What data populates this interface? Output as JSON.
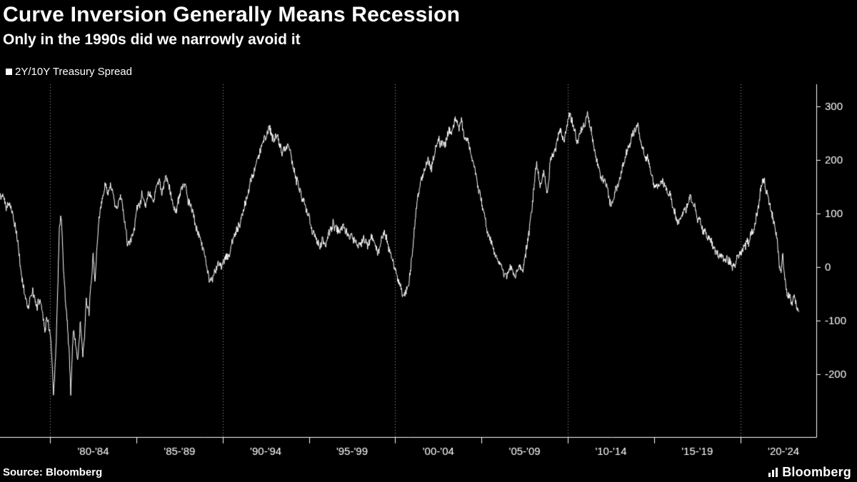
{
  "header": {
    "title": "Curve Inversion Generally Means Recession",
    "subtitle": "Only in the 1990s did we narrowly avoid it"
  },
  "legend": {
    "label": "2Y/10Y Treasury Spread"
  },
  "footer": {
    "source": "Source: Bloomberg",
    "brand": "Bloomberg"
  },
  "colors": {
    "background": "#000000",
    "line": "#ffffff",
    "grid": "rgba(255,255,255,0.65)",
    "axis": "#ffffff",
    "text": "#ffffff"
  },
  "chart_data": {
    "type": "line",
    "title": "Curve Inversion Generally Means Recession",
    "subtitle": "Only in the 1990s did we narrowly avoid it",
    "unit": "basis points",
    "legend_position": "top-left",
    "grid": "vertical-dotted",
    "x_range": [
      1977.1,
      2024.4
    ],
    "y_range": [
      -317,
      341
    ],
    "y_ticks": [
      300,
      200,
      100,
      0,
      -100,
      -200
    ],
    "x_grid_years": [
      1980,
      1990,
      2000,
      2010,
      2020
    ],
    "x_tick_years": [
      1980,
      1985,
      1990,
      1995,
      2000,
      2005,
      2010,
      2015,
      2020
    ],
    "x_labels": [
      {
        "label": "'80-'84",
        "center": 1982.5
      },
      {
        "label": "'85-'89",
        "center": 1987.5
      },
      {
        "label": "'90-'94",
        "center": 1992.5
      },
      {
        "label": "'95-'99",
        "center": 1997.5
      },
      {
        "label": "'00-'04",
        "center": 2002.5
      },
      {
        "label": "'05-'09",
        "center": 2007.5
      },
      {
        "label": "'10-'14",
        "center": 2012.5
      },
      {
        "label": "'15-'19",
        "center": 2017.5
      },
      {
        "label": "'20-'24",
        "center": 2022.5
      }
    ],
    "noise_amplitude": 6,
    "series": [
      {
        "name": "2Y/10Y Treasury Spread",
        "points": [
          [
            1977.0,
            155
          ],
          [
            1977.15,
            125
          ],
          [
            1977.3,
            138
          ],
          [
            1977.45,
            118
          ],
          [
            1977.6,
            125
          ],
          [
            1977.8,
            100
          ],
          [
            1978.0,
            72
          ],
          [
            1978.2,
            25
          ],
          [
            1978.35,
            -18
          ],
          [
            1978.5,
            -40
          ],
          [
            1978.7,
            -70
          ],
          [
            1978.85,
            -55
          ],
          [
            1979.0,
            -50
          ],
          [
            1979.2,
            -82
          ],
          [
            1979.35,
            -60
          ],
          [
            1979.5,
            -65
          ],
          [
            1979.7,
            -112
          ],
          [
            1979.85,
            -90
          ],
          [
            1980.0,
            -120
          ],
          [
            1980.1,
            -170
          ],
          [
            1980.2,
            -250
          ],
          [
            1980.35,
            -150
          ],
          [
            1980.45,
            -40
          ],
          [
            1980.55,
            80
          ],
          [
            1980.65,
            100
          ],
          [
            1980.8,
            -10
          ],
          [
            1980.95,
            -80
          ],
          [
            1981.1,
            -160
          ],
          [
            1981.2,
            -232
          ],
          [
            1981.35,
            -120
          ],
          [
            1981.5,
            -150
          ],
          [
            1981.6,
            -172
          ],
          [
            1981.75,
            -110
          ],
          [
            1981.9,
            -158
          ],
          [
            1982.0,
            -125
          ],
          [
            1982.1,
            -55
          ],
          [
            1982.25,
            -95
          ],
          [
            1982.4,
            -25
          ],
          [
            1982.5,
            22
          ],
          [
            1982.6,
            -35
          ],
          [
            1982.75,
            45
          ],
          [
            1982.9,
            105
          ],
          [
            1983.0,
            125
          ],
          [
            1983.2,
            152
          ],
          [
            1983.35,
            130
          ],
          [
            1983.5,
            148
          ],
          [
            1983.7,
            128
          ],
          [
            1983.9,
            115
          ],
          [
            1984.1,
            128
          ],
          [
            1984.3,
            85
          ],
          [
            1984.5,
            48
          ],
          [
            1984.7,
            58
          ],
          [
            1984.9,
            80
          ],
          [
            1985.1,
            115
          ],
          [
            1985.3,
            132
          ],
          [
            1985.5,
            118
          ],
          [
            1985.7,
            140
          ],
          [
            1985.9,
            125
          ],
          [
            1986.1,
            142
          ],
          [
            1986.3,
            158
          ],
          [
            1986.5,
            140
          ],
          [
            1986.7,
            160
          ],
          [
            1986.9,
            148
          ],
          [
            1987.1,
            118
          ],
          [
            1987.3,
            102
          ],
          [
            1987.5,
            132
          ],
          [
            1987.7,
            148
          ],
          [
            1987.9,
            138
          ],
          [
            1988.1,
            120
          ],
          [
            1988.3,
            95
          ],
          [
            1988.5,
            75
          ],
          [
            1988.7,
            55
          ],
          [
            1988.9,
            35
          ],
          [
            1989.1,
            5
          ],
          [
            1989.25,
            -22
          ],
          [
            1989.4,
            -28
          ],
          [
            1989.6,
            -8
          ],
          [
            1989.8,
            2
          ],
          [
            1990.0,
            12
          ],
          [
            1990.2,
            28
          ],
          [
            1990.4,
            22
          ],
          [
            1990.6,
            48
          ],
          [
            1990.8,
            62
          ],
          [
            1991.0,
            78
          ],
          [
            1991.2,
            108
          ],
          [
            1991.4,
            128
          ],
          [
            1991.6,
            158
          ],
          [
            1991.8,
            178
          ],
          [
            1992.0,
            205
          ],
          [
            1992.2,
            222
          ],
          [
            1992.4,
            238
          ],
          [
            1992.55,
            252
          ],
          [
            1992.7,
            268
          ],
          [
            1992.85,
            248
          ],
          [
            1993.0,
            235
          ],
          [
            1993.2,
            244
          ],
          [
            1993.4,
            222
          ],
          [
            1993.6,
            214
          ],
          [
            1993.8,
            224
          ],
          [
            1994.0,
            198
          ],
          [
            1994.2,
            168
          ],
          [
            1994.4,
            148
          ],
          [
            1994.6,
            132
          ],
          [
            1994.8,
            118
          ],
          [
            1995.0,
            102
          ],
          [
            1995.2,
            72
          ],
          [
            1995.4,
            50
          ],
          [
            1995.6,
            40
          ],
          [
            1995.8,
            56
          ],
          [
            1996.0,
            44
          ],
          [
            1996.2,
            68
          ],
          [
            1996.4,
            84
          ],
          [
            1996.6,
            74
          ],
          [
            1996.8,
            62
          ],
          [
            1997.0,
            70
          ],
          [
            1997.2,
            58
          ],
          [
            1997.4,
            66
          ],
          [
            1997.6,
            54
          ],
          [
            1997.8,
            48
          ],
          [
            1998.0,
            40
          ],
          [
            1998.2,
            46
          ],
          [
            1998.4,
            34
          ],
          [
            1998.6,
            56
          ],
          [
            1998.8,
            44
          ],
          [
            1999.0,
            34
          ],
          [
            1999.2,
            48
          ],
          [
            1999.4,
            58
          ],
          [
            1999.6,
            44
          ],
          [
            1999.8,
            28
          ],
          [
            2000.0,
            -2
          ],
          [
            2000.2,
            -32
          ],
          [
            2000.4,
            -48
          ],
          [
            2000.6,
            -42
          ],
          [
            2000.8,
            -28
          ],
          [
            2001.0,
            35
          ],
          [
            2001.15,
            85
          ],
          [
            2001.3,
            125
          ],
          [
            2001.5,
            158
          ],
          [
            2001.7,
            178
          ],
          [
            2001.9,
            198
          ],
          [
            2002.1,
            188
          ],
          [
            2002.3,
            215
          ],
          [
            2002.5,
            238
          ],
          [
            2002.7,
            228
          ],
          [
            2002.9,
            238
          ],
          [
            2003.1,
            248
          ],
          [
            2003.3,
            258
          ],
          [
            2003.5,
            268
          ],
          [
            2003.7,
            258
          ],
          [
            2003.85,
            272
          ],
          [
            2004.0,
            248
          ],
          [
            2004.2,
            232
          ],
          [
            2004.4,
            208
          ],
          [
            2004.6,
            178
          ],
          [
            2004.8,
            148
          ],
          [
            2005.0,
            118
          ],
          [
            2005.2,
            88
          ],
          [
            2005.4,
            58
          ],
          [
            2005.6,
            38
          ],
          [
            2005.8,
            22
          ],
          [
            2006.0,
            4
          ],
          [
            2006.2,
            -8
          ],
          [
            2006.4,
            -12
          ],
          [
            2006.6,
            -6
          ],
          [
            2006.8,
            -12
          ],
          [
            2007.0,
            -6
          ],
          [
            2007.2,
            4
          ],
          [
            2007.4,
            -8
          ],
          [
            2007.6,
            38
          ],
          [
            2007.8,
            78
          ],
          [
            2008.0,
            138
          ],
          [
            2008.2,
            188
          ],
          [
            2008.4,
            150
          ],
          [
            2008.6,
            184
          ],
          [
            2008.8,
            142
          ],
          [
            2009.0,
            195
          ],
          [
            2009.3,
            225
          ],
          [
            2009.6,
            255
          ],
          [
            2009.8,
            235
          ],
          [
            2010.0,
            272
          ],
          [
            2010.15,
            285
          ],
          [
            2010.3,
            265
          ],
          [
            2010.45,
            252
          ],
          [
            2010.6,
            230
          ],
          [
            2010.8,
            255
          ],
          [
            2011.0,
            272
          ],
          [
            2011.15,
            280
          ],
          [
            2011.3,
            258
          ],
          [
            2011.5,
            235
          ],
          [
            2011.7,
            200
          ],
          [
            2011.9,
            175
          ],
          [
            2012.1,
            158
          ],
          [
            2012.3,
            140
          ],
          [
            2012.5,
            120
          ],
          [
            2012.7,
            134
          ],
          [
            2012.9,
            150
          ],
          [
            2013.1,
            170
          ],
          [
            2013.3,
            196
          ],
          [
            2013.5,
            225
          ],
          [
            2013.7,
            244
          ],
          [
            2013.9,
            256
          ],
          [
            2014.05,
            260
          ],
          [
            2014.2,
            236
          ],
          [
            2014.5,
            210
          ],
          [
            2014.8,
            185
          ],
          [
            2015.0,
            160
          ],
          [
            2015.3,
            150
          ],
          [
            2015.5,
            164
          ],
          [
            2015.7,
            145
          ],
          [
            2016.0,
            124
          ],
          [
            2016.3,
            96
          ],
          [
            2016.5,
            84
          ],
          [
            2016.7,
            96
          ],
          [
            2016.9,
            114
          ],
          [
            2017.1,
            126
          ],
          [
            2017.3,
            110
          ],
          [
            2017.5,
            96
          ],
          [
            2017.7,
            80
          ],
          [
            2018.0,
            56
          ],
          [
            2018.3,
            44
          ],
          [
            2018.5,
            30
          ],
          [
            2018.8,
            20
          ],
          [
            2019.0,
            16
          ],
          [
            2019.3,
            8
          ],
          [
            2019.5,
            0
          ],
          [
            2019.65,
            -4
          ],
          [
            2019.8,
            12
          ],
          [
            2020.0,
            26
          ],
          [
            2020.2,
            44
          ],
          [
            2020.5,
            50
          ],
          [
            2020.8,
            70
          ],
          [
            2021.0,
            100
          ],
          [
            2021.2,
            144
          ],
          [
            2021.35,
            158
          ],
          [
            2021.5,
            140
          ],
          [
            2021.7,
            120
          ],
          [
            2021.9,
            96
          ],
          [
            2022.05,
            70
          ],
          [
            2022.15,
            42
          ],
          [
            2022.25,
            12
          ],
          [
            2022.35,
            -12
          ],
          [
            2022.45,
            22
          ],
          [
            2022.55,
            -16
          ],
          [
            2022.7,
            -40
          ],
          [
            2022.85,
            -52
          ],
          [
            2023.0,
            -64
          ],
          [
            2023.1,
            -44
          ],
          [
            2023.2,
            -60
          ],
          [
            2023.3,
            -80
          ],
          [
            2023.4,
            -88
          ]
        ]
      }
    ]
  }
}
